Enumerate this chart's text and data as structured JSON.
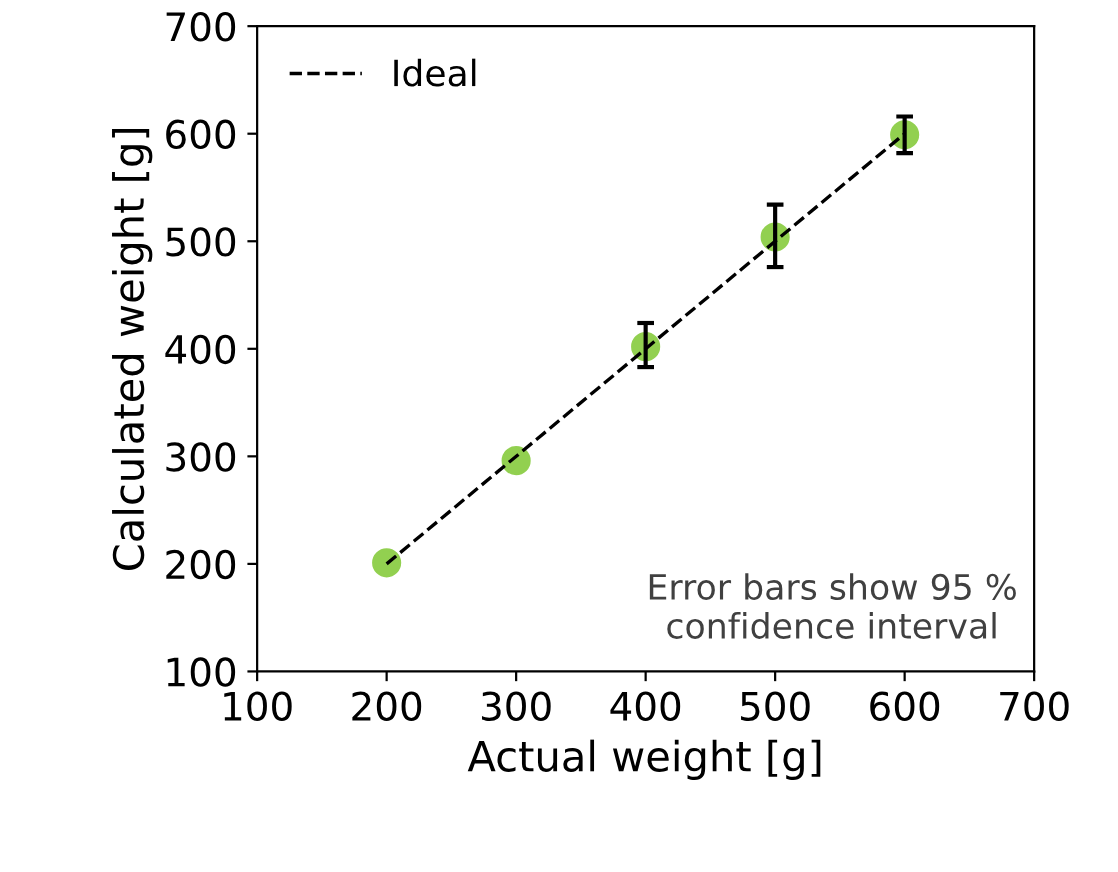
{
  "chart_data": {
    "type": "scatter",
    "xlabel": "Actual weight [g]",
    "ylabel": "Calculated weight [g]",
    "x": [
      200,
      300,
      400,
      500,
      600
    ],
    "series": [
      {
        "color": "#92d050",
        "values": [
          201,
          296,
          402,
          504,
          599
        ],
        "errors": [
          null,
          null,
          [
            383,
            424
          ],
          [
            476,
            534
          ],
          [
            582,
            616
          ]
        ]
      },
      {
        "type": "line",
        "name": "Ideal",
        "color": "#000000",
        "x": [
          200,
          600
        ],
        "values": [
          200,
          600
        ],
        "line_style": "dashed",
        "marker": "none"
      }
    ],
    "xlim": [
      100,
      700
    ],
    "xticks": [
      100,
      200,
      300,
      400,
      500,
      600,
      700
    ],
    "ylim": [
      100,
      700
    ],
    "yticks": [
      100,
      200,
      300,
      400,
      500,
      600,
      700
    ],
    "grid": false,
    "legend": "top left",
    "annotations": [
      "Error bars show 95 % confidence interval"
    ]
  }
}
